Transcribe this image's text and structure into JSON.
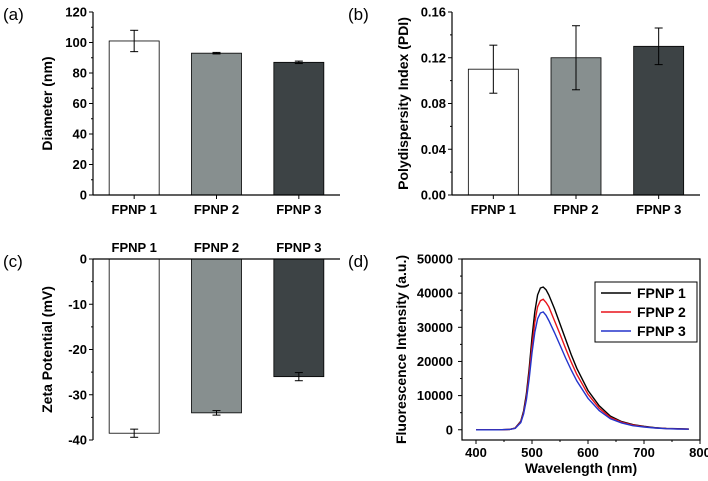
{
  "chart_data": [
    {
      "panel": "(a)",
      "type": "bar",
      "categories": [
        "FPNP 1",
        "FPNP 2",
        "FPNP 3"
      ],
      "values": [
        101,
        93,
        87
      ],
      "errors": [
        7,
        0.5,
        0.8
      ],
      "colors": [
        "#ffffff",
        "#878f8f",
        "#3d4345"
      ],
      "xlabel": "",
      "ylabel": "Diameter (nm)",
      "ylim": [
        0,
        120
      ],
      "yticks": [
        0,
        20,
        40,
        60,
        80,
        100,
        120
      ],
      "ytick_labels": [
        "0",
        "20",
        "40",
        "60",
        "80",
        "100",
        "120"
      ]
    },
    {
      "panel": "(b)",
      "type": "bar",
      "categories": [
        "FPNP 1",
        "FPNP 2",
        "FPNP 3"
      ],
      "values": [
        0.11,
        0.12,
        0.13
      ],
      "errors": [
        0.021,
        0.028,
        0.016
      ],
      "colors": [
        "#ffffff",
        "#878f8f",
        "#3d4345"
      ],
      "xlabel": "",
      "ylabel": "Polydispersity Index (PDI)",
      "ylim": [
        0,
        0.16
      ],
      "yticks": [
        0,
        0.04,
        0.08,
        0.12,
        0.16
      ],
      "ytick_labels": [
        "0.00",
        "0.04",
        "0.08",
        "0.12",
        "0.16"
      ]
    },
    {
      "panel": "(c)",
      "type": "bar",
      "categories": [
        "FPNP 1",
        "FPNP 2",
        "FPNP 3"
      ],
      "values": [
        -38.5,
        -34,
        -26
      ],
      "errors": [
        0.9,
        0.5,
        0.9
      ],
      "colors": [
        "#ffffff",
        "#878f8f",
        "#3d4345"
      ],
      "xlabel": "",
      "ylabel": "Zeta Potential (mV)",
      "ylim": [
        -40,
        0
      ],
      "yticks": [
        0,
        -10,
        -20,
        -30,
        -40
      ],
      "ytick_labels": [
        "0",
        "-10",
        "-20",
        "-30",
        "-40"
      ]
    },
    {
      "panel": "(d)",
      "type": "line",
      "xlabel": "Wavelength (nm)",
      "ylabel": "Fluorescence Intensity (a.u.)",
      "xlim": [
        375,
        800
      ],
      "ylim": [
        -3000,
        50000
      ],
      "xticks": [
        400,
        500,
        600,
        700,
        800
      ],
      "xtick_labels": [
        "400",
        "500",
        "600",
        "700",
        "800"
      ],
      "yticks": [
        0,
        10000,
        20000,
        30000,
        40000,
        50000
      ],
      "ytick_labels": [
        "0",
        "10000",
        "20000",
        "30000",
        "40000",
        "50000"
      ],
      "legend": "top-right",
      "x": [
        400,
        440,
        460,
        470,
        480,
        485,
        490,
        495,
        500,
        505,
        510,
        515,
        520,
        525,
        530,
        540,
        550,
        560,
        570,
        580,
        600,
        620,
        640,
        660,
        680,
        700,
        720,
        740,
        760,
        780
      ],
      "series": [
        {
          "name": "FPNP 1",
          "color": "#000000",
          "values": [
            0,
            0,
            100,
            500,
            2500,
            5500,
            10500,
            18000,
            27000,
            34500,
            39500,
            41500,
            41800,
            41000,
            39500,
            35500,
            31000,
            26500,
            22000,
            18000,
            11500,
            7000,
            4000,
            2400,
            1500,
            1000,
            600,
            400,
            300,
            200
          ]
        },
        {
          "name": "FPNP 2",
          "color": "#e8141b",
          "values": [
            0,
            0,
            100,
            450,
            2300,
            5000,
            9500,
            16500,
            24500,
            31500,
            36000,
            37800,
            38200,
            37300,
            36000,
            32000,
            28000,
            23800,
            19800,
            16200,
            10400,
            6300,
            3600,
            2200,
            1400,
            900,
            550,
            350,
            250,
            180
          ]
        },
        {
          "name": "FPNP 3",
          "color": "#2334cc",
          "values": [
            0,
            0,
            100,
            400,
            2100,
            4600,
            8800,
            15000,
            22500,
            28500,
            32500,
            34200,
            34500,
            33500,
            32000,
            28500,
            24800,
            21000,
            17500,
            14300,
            9200,
            5600,
            3200,
            2000,
            1200,
            800,
            500,
            320,
            220,
            160
          ]
        }
      ]
    }
  ]
}
